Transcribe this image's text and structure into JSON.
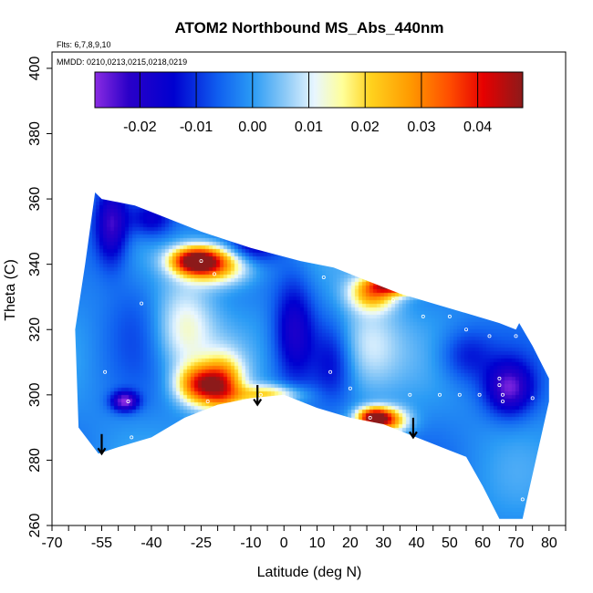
{
  "chart_data": {
    "type": "heatmap",
    "title": "ATOM2 Northbound MS_Abs_440nm",
    "subtitle_flights": "Flts: 6,7,8,9,10",
    "subtitle_dates": "MMDD: 0210,0213,0215,0218,0219",
    "xlabel": "Latitude (deg N)",
    "ylabel": "Theta (C)",
    "xlim": [
      -70,
      85
    ],
    "ylim": [
      260,
      405
    ],
    "x_ticks": [
      -70,
      -55,
      -40,
      -25,
      -10,
      0,
      10,
      20,
      30,
      40,
      50,
      60,
      70,
      80
    ],
    "x_tick_labels": [
      "-70",
      "-55",
      "-40",
      "-25",
      "-10",
      "0",
      "10",
      "20",
      "30",
      "40",
      "50",
      "60",
      "70",
      "80"
    ],
    "x_minor_ticks": [
      -65,
      -60,
      -50,
      -45,
      -35,
      -30,
      -20,
      -15,
      -5,
      5,
      15,
      25,
      35,
      45,
      55,
      65,
      75,
      85
    ],
    "y_ticks": [
      260,
      280,
      300,
      320,
      340,
      360,
      380,
      400
    ],
    "y_tick_labels": [
      "260",
      "280",
      "300",
      "320",
      "340",
      "360",
      "380",
      "400"
    ],
    "colorbar": {
      "range": [
        -0.028,
        0.048
      ],
      "ticks": [
        -0.02,
        -0.01,
        0.0,
        0.01,
        0.02,
        0.03,
        0.04
      ],
      "tick_labels": [
        "-0.02",
        "-0.01",
        "0.00",
        "0.01",
        "0.02",
        "0.03",
        "0.04"
      ],
      "color_stops": [
        {
          "value": -0.028,
          "color": "#8a2be2"
        },
        {
          "value": -0.022,
          "color": "#2a00c8"
        },
        {
          "value": -0.014,
          "color": "#0000d0"
        },
        {
          "value": -0.006,
          "color": "#1060f0"
        },
        {
          "value": 0.0,
          "color": "#2a9bf5"
        },
        {
          "value": 0.006,
          "color": "#8fcbf7"
        },
        {
          "value": 0.011,
          "color": "#e8f6ff"
        },
        {
          "value": 0.016,
          "color": "#ffff99"
        },
        {
          "value": 0.021,
          "color": "#ffd21e"
        },
        {
          "value": 0.028,
          "color": "#ff9a00"
        },
        {
          "value": 0.035,
          "color": "#ff4d00"
        },
        {
          "value": 0.041,
          "color": "#e60000"
        },
        {
          "value": 0.048,
          "color": "#8c1a1a"
        }
      ]
    },
    "domain": {
      "top": [
        [
          -57,
          362
        ],
        [
          -55,
          360
        ],
        [
          -45,
          358
        ],
        [
          -35,
          354
        ],
        [
          -25,
          350
        ],
        [
          -10,
          345
        ],
        [
          5,
          341
        ],
        [
          15,
          339
        ],
        [
          25,
          335
        ],
        [
          35,
          331
        ],
        [
          45,
          328
        ],
        [
          55,
          325
        ],
        [
          65,
          322
        ],
        [
          70,
          320
        ]
      ],
      "bottom": [
        [
          -56,
          282
        ],
        [
          -50,
          284
        ],
        [
          -40,
          287
        ],
        [
          -30,
          293
        ],
        [
          -20,
          297
        ],
        [
          -10,
          299
        ],
        [
          0,
          300
        ],
        [
          10,
          296
        ],
        [
          20,
          293
        ],
        [
          30,
          291
        ],
        [
          40,
          287
        ],
        [
          50,
          283
        ],
        [
          55,
          281
        ],
        [
          60,
          272
        ],
        [
          65,
          262
        ],
        [
          72,
          262
        ],
        [
          80,
          298
        ],
        [
          80,
          305
        ],
        [
          75,
          315
        ],
        [
          71,
          322
        ]
      ],
      "left_edge": [
        [
          -62,
          290
        ],
        [
          -63,
          320
        ],
        [
          -60,
          340
        ],
        [
          -57,
          362
        ]
      ]
    },
    "field_base_value": -0.002,
    "features": [
      {
        "lat": -27,
        "theta": 341,
        "value": 0.042,
        "sx": 7,
        "sy": 4
      },
      {
        "lat": -20,
        "theta": 340,
        "value": 0.03,
        "sx": 10,
        "sy": 6
      },
      {
        "lat": -25,
        "theta": 303,
        "value": 0.036,
        "sx": 7,
        "sy": 6
      },
      {
        "lat": -18,
        "theta": 303,
        "value": 0.026,
        "sx": 6,
        "sy": 9
      },
      {
        "lat": -30,
        "theta": 320,
        "value": 0.014,
        "sx": 9,
        "sy": 14
      },
      {
        "lat": 35,
        "theta": 334,
        "value": 0.045,
        "sx": 8,
        "sy": 3
      },
      {
        "lat": 27,
        "theta": 331,
        "value": 0.025,
        "sx": 7,
        "sy": 5
      },
      {
        "lat": 27,
        "theta": 293,
        "value": 0.044,
        "sx": 5,
        "sy": 3
      },
      {
        "lat": 32,
        "theta": 292,
        "value": 0.024,
        "sx": 6,
        "sy": 4
      },
      {
        "lat": -5,
        "theta": 300,
        "value": 0.02,
        "sx": 10,
        "sy": 3
      },
      {
        "lat": 25,
        "theta": 315,
        "value": 0.011,
        "sx": 10,
        "sy": 14
      },
      {
        "lat": -48,
        "theta": 298,
        "value": -0.028,
        "sx": 4,
        "sy": 3
      },
      {
        "lat": -52,
        "theta": 352,
        "value": -0.024,
        "sx": 5,
        "sy": 12
      },
      {
        "lat": -40,
        "theta": 354,
        "value": -0.018,
        "sx": 7,
        "sy": 6
      },
      {
        "lat": -10,
        "theta": 345,
        "value": -0.016,
        "sx": 8,
        "sy": 5
      },
      {
        "lat": 3,
        "theta": 320,
        "value": -0.018,
        "sx": 6,
        "sy": 16
      },
      {
        "lat": 15,
        "theta": 310,
        "value": -0.012,
        "sx": 6,
        "sy": 12
      },
      {
        "lat": 68,
        "theta": 302,
        "value": -0.024,
        "sx": 7,
        "sy": 8
      },
      {
        "lat": 55,
        "theta": 312,
        "value": -0.012,
        "sx": 8,
        "sy": 8
      },
      {
        "lat": -45,
        "theta": 325,
        "value": -0.006,
        "sx": 9,
        "sy": 18
      }
    ],
    "sample_points": [
      [
        -54,
        307
      ],
      [
        -47,
        298
      ],
      [
        -46,
        287
      ],
      [
        -43,
        328
      ],
      [
        -23,
        298
      ],
      [
        -21,
        337
      ],
      [
        -25,
        341
      ],
      [
        -8,
        346
      ],
      [
        -7,
        300
      ],
      [
        10,
        343
      ],
      [
        12,
        336
      ],
      [
        14,
        307
      ],
      [
        20,
        302
      ],
      [
        26,
        293
      ],
      [
        30,
        334
      ],
      [
        35,
        334
      ],
      [
        33,
        329
      ],
      [
        38,
        300
      ],
      [
        42,
        324
      ],
      [
        47,
        300
      ],
      [
        50,
        324
      ],
      [
        53,
        300
      ],
      [
        55,
        320
      ],
      [
        59,
        300
      ],
      [
        62,
        318
      ],
      [
        65,
        305
      ],
      [
        65,
        303
      ],
      [
        66,
        300
      ],
      [
        66,
        298
      ],
      [
        70,
        318
      ],
      [
        72,
        268
      ],
      [
        75,
        299
      ]
    ],
    "arrows": [
      {
        "lat": -55,
        "theta_top": 288,
        "theta_tip": 282
      },
      {
        "lat": -8,
        "theta_top": 303,
        "theta_tip": 297
      },
      {
        "lat": 39,
        "theta_top": 293,
        "theta_tip": 287
      }
    ]
  }
}
